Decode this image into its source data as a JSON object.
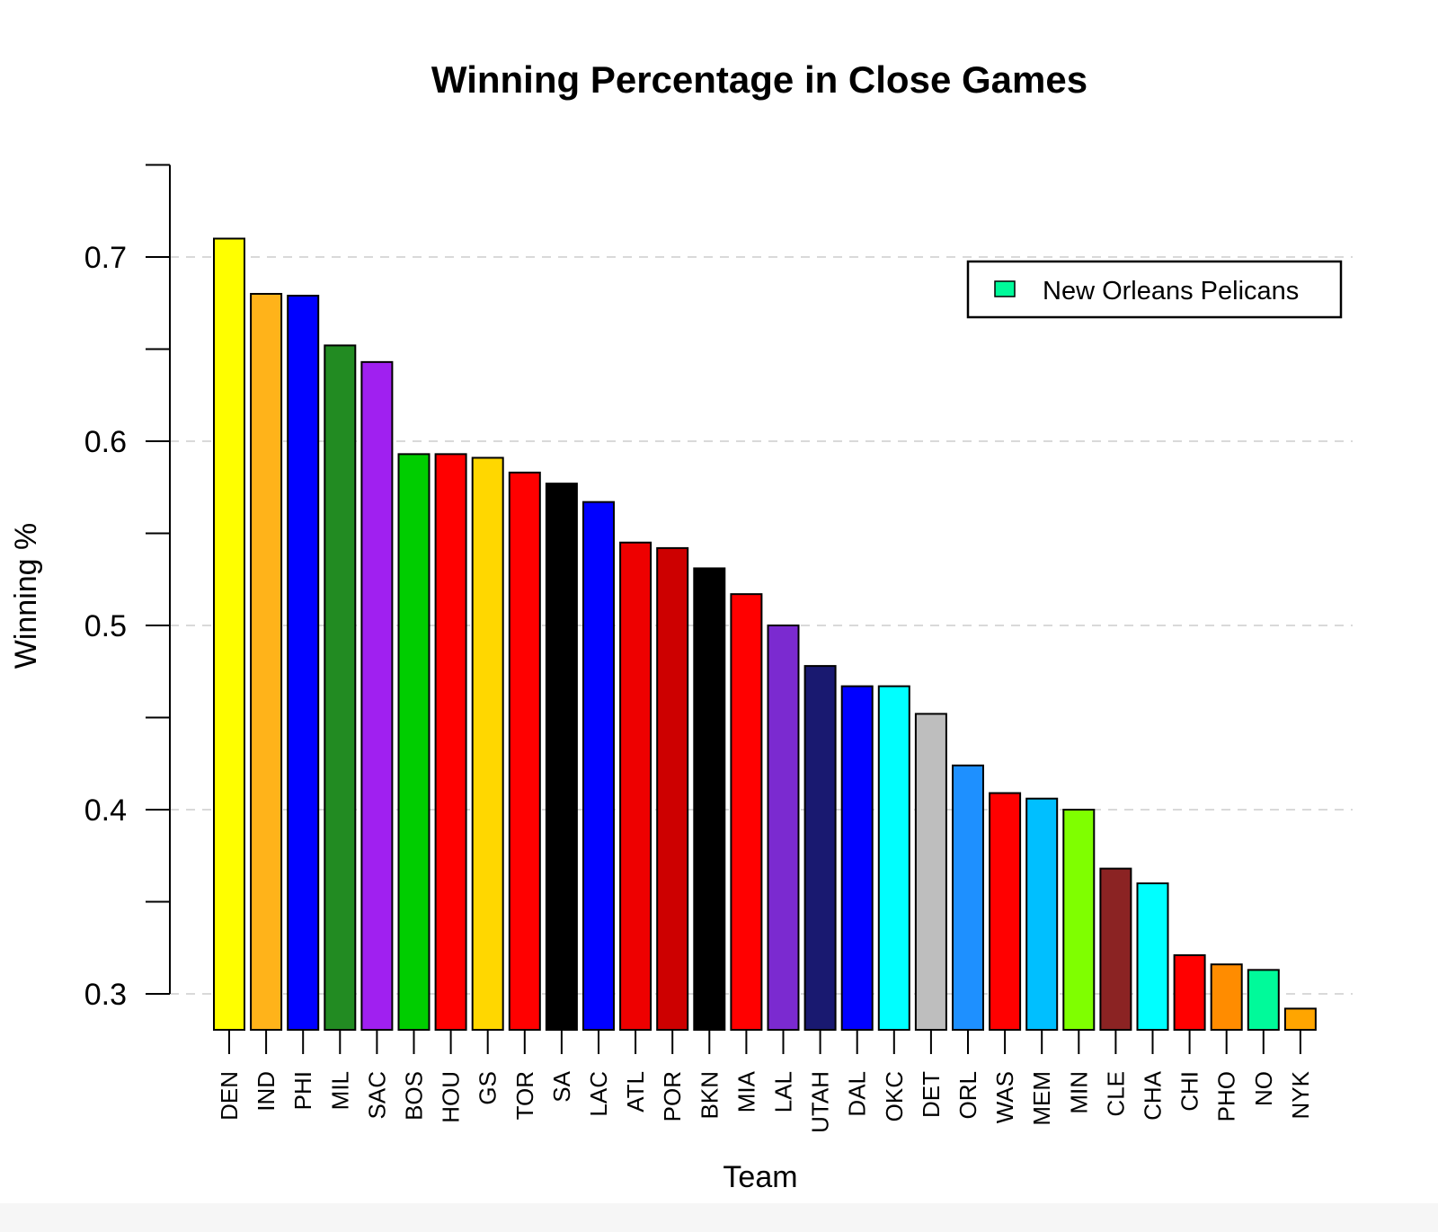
{
  "chart_data": {
    "type": "bar",
    "title": "Winning Percentage in Close Games",
    "xlabel": "Team",
    "ylabel": "Winning %",
    "ylim": [
      0.28,
      0.75
    ],
    "yticks": [
      0.3,
      0.35,
      0.4,
      0.45,
      0.5,
      0.55,
      0.6,
      0.65,
      0.7,
      0.75
    ],
    "ytick_labels": [
      "0.3",
      "",
      "0.4",
      "",
      "0.5",
      "",
      "0.6",
      "",
      "0.7",
      ""
    ],
    "grid": "horizontal dashed at labeled ticks",
    "legend": {
      "position": "top-right",
      "label": "New Orleans Pelicans",
      "color": "#00FA9A"
    },
    "categories": [
      "DEN",
      "IND",
      "PHI",
      "MIL",
      "SAC",
      "BOS",
      "HOU",
      "GS",
      "TOR",
      "SA",
      "LAC",
      "ATL",
      "POR",
      "BKN",
      "MIA",
      "LAL",
      "UTAH",
      "DAL",
      "OKC",
      "DET",
      "ORL",
      "WAS",
      "MEM",
      "MIN",
      "CLE",
      "CHA",
      "CHI",
      "PHO",
      "NO",
      "NYK"
    ],
    "values": [
      0.71,
      0.68,
      0.679,
      0.652,
      0.643,
      0.593,
      0.593,
      0.591,
      0.583,
      0.577,
      0.567,
      0.545,
      0.542,
      0.531,
      0.517,
      0.5,
      0.478,
      0.467,
      0.467,
      0.452,
      0.424,
      0.409,
      0.406,
      0.4,
      0.368,
      0.36,
      0.321,
      0.316,
      0.313,
      0.292
    ],
    "colors": [
      "#FFFF00",
      "#FFB31A",
      "#0000FF",
      "#228B22",
      "#A020F0",
      "#00CD00",
      "#FF0000",
      "#FFD700",
      "#FF0000",
      "#000000",
      "#0000FF",
      "#EE0000",
      "#CD0000",
      "#000000",
      "#FF0000",
      "#7B2AD0",
      "#191970",
      "#0000FF",
      "#00FFFF",
      "#BEBEBE",
      "#1E90FF",
      "#FF0000",
      "#00BFFF",
      "#7FFF00",
      "#8B2323",
      "#00FFFF",
      "#FF0000",
      "#FF8C00",
      "#00FA9A",
      "#FFA500"
    ]
  }
}
